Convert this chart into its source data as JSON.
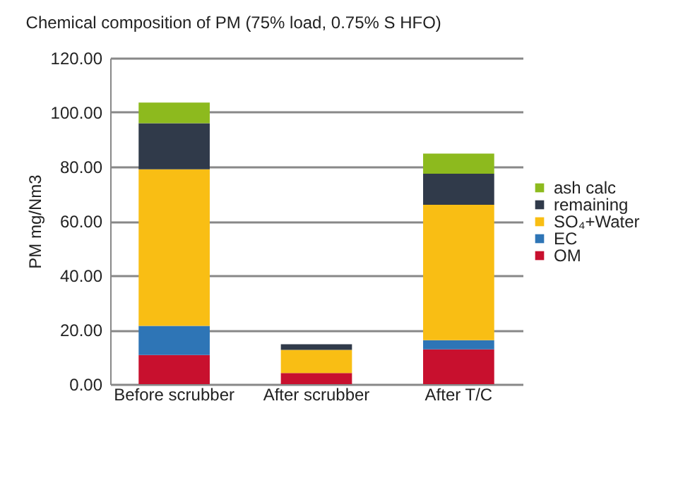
{
  "chart_data": {
    "type": "bar",
    "title": "Chemical composition of PM      (75% load, 0.75% S HFO)",
    "ylabel": "PM mg/Nm3",
    "categories": [
      "Before scrubber",
      "After scrubber",
      "After T/C"
    ],
    "stacked": true,
    "series": [
      {
        "name": "OM",
        "color": "#c8102e",
        "values": [
          10.7,
          4.1,
          12.8
        ]
      },
      {
        "name": "EC",
        "color": "#2e75b6",
        "values": [
          10.7,
          0,
          3.4
        ]
      },
      {
        "name": "SO₄+Water",
        "color": "#f9be14",
        "values": [
          57.6,
          8.5,
          49.8
        ]
      },
      {
        "name": "remaining",
        "color": "#303a4a",
        "values": [
          17.0,
          2.1,
          11.4
        ]
      },
      {
        "name": "ash calc",
        "color": "#8dba1e",
        "values": [
          7.6,
          0,
          7.4
        ]
      }
    ],
    "ylim": [
      0,
      120
    ],
    "yticks": [
      {
        "value": 0,
        "label": "0.00"
      },
      {
        "value": 20,
        "label": "20.00"
      },
      {
        "value": 40,
        "label": "40.00"
      },
      {
        "value": 60,
        "label": "60.00"
      },
      {
        "value": 80,
        "label": "80.00"
      },
      {
        "value": 100,
        "label": "100.00"
      },
      {
        "value": 120,
        "label": "120.00"
      }
    ],
    "grid": "y",
    "legend": "right"
  }
}
